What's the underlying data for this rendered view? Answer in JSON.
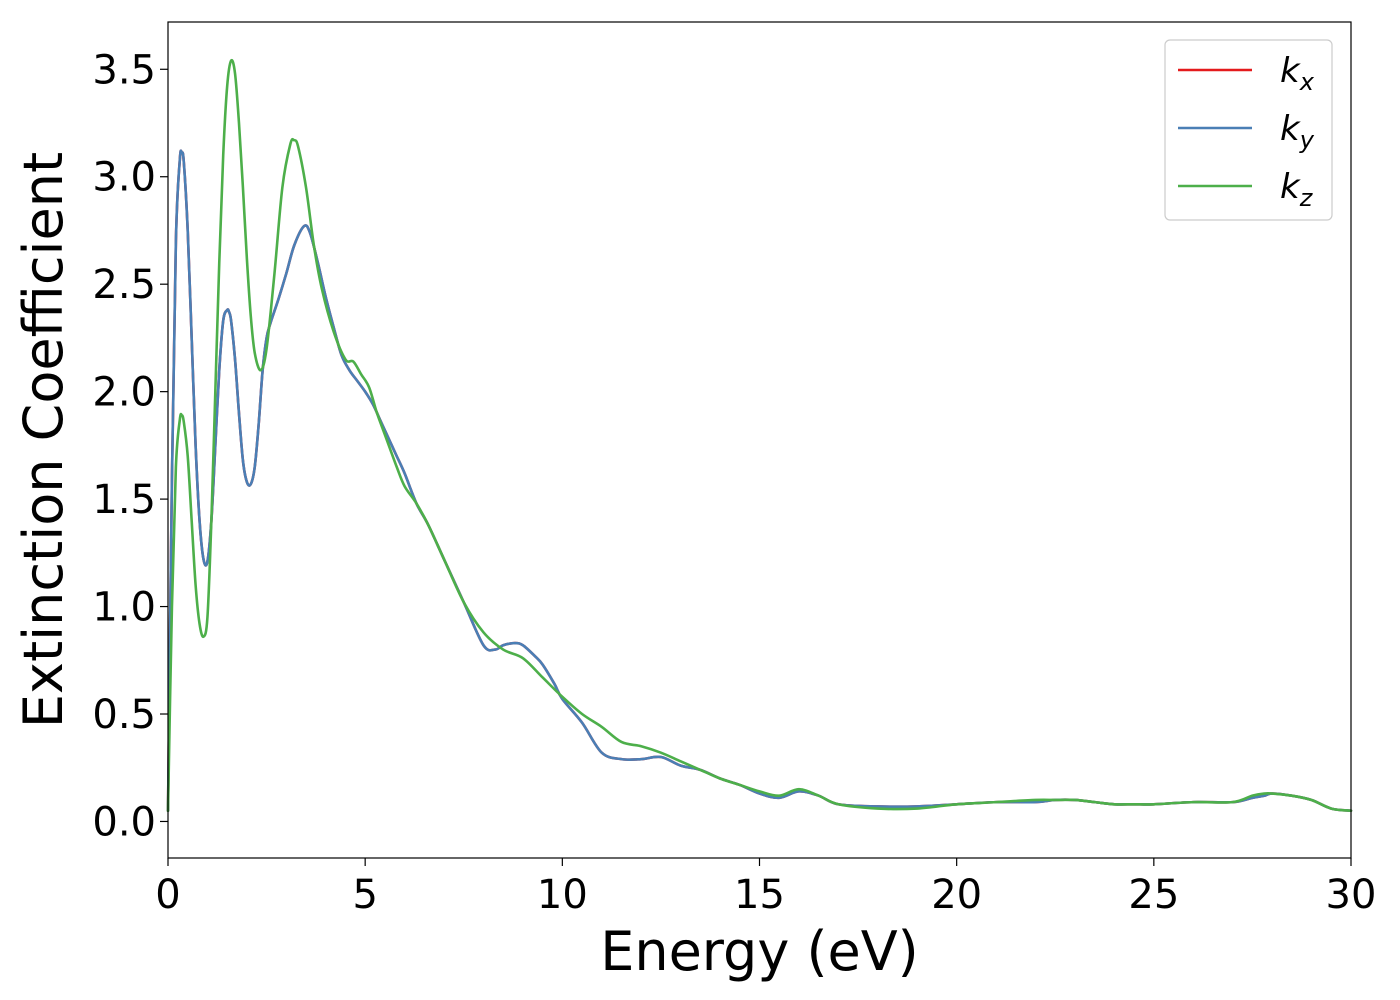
{
  "chart_data": {
    "type": "line",
    "title": "",
    "xlabel": "Energy (eV)",
    "ylabel": "Extinction Coefficient",
    "xlim": [
      0,
      30
    ],
    "ylim": [
      -0.17,
      3.72
    ],
    "xticks": [
      0,
      5,
      10,
      15,
      20,
      25,
      30
    ],
    "xtick_labels": [
      "0",
      "5",
      "10",
      "15",
      "20",
      "25",
      "30"
    ],
    "yticks": [
      0.0,
      0.5,
      1.0,
      1.5,
      2.0,
      2.5,
      3.0,
      3.5
    ],
    "ytick_labels": [
      "0.0",
      "0.5",
      "1.0",
      "1.5",
      "2.0",
      "2.5",
      "3.0",
      "3.5"
    ],
    "grid": false,
    "legend": {
      "position": "top-right"
    },
    "series": [
      {
        "name": "k",
        "subscript": "x",
        "color": "#e41a1c",
        "x": [
          0,
          0.1,
          0.2,
          0.3,
          0.35,
          0.4,
          0.5,
          0.6,
          0.7,
          0.8,
          0.9,
          1.0,
          1.1,
          1.2,
          1.3,
          1.4,
          1.5,
          1.55,
          1.6,
          1.7,
          1.8,
          1.9,
          2.0,
          2.1,
          2.2,
          2.3,
          2.4,
          2.5,
          2.6,
          2.8,
          3.0,
          3.2,
          3.45,
          3.6,
          3.8,
          4.0,
          4.2,
          4.4,
          4.6,
          4.8,
          5.0,
          5.2,
          5.4,
          5.6,
          5.8,
          6.0,
          6.3,
          6.6,
          7.0,
          7.5,
          8.0,
          8.3,
          8.5,
          8.8,
          9.0,
          9.3,
          9.5,
          9.8,
          10.0,
          10.5,
          11.0,
          11.5,
          12.0,
          12.5,
          13.0,
          13.5,
          14.0,
          14.5,
          15.0,
          15.5,
          16.0,
          16.5,
          17.0,
          18.0,
          19.0,
          20.0,
          21.0,
          22.0,
          22.5,
          23.0,
          23.5,
          24.0,
          24.5,
          25.0,
          26.0,
          27.0,
          27.5,
          27.8,
          28.0,
          28.5,
          29.0,
          29.5,
          30.0
        ],
        "y": [
          0.05,
          1.6,
          2.7,
          3.08,
          3.11,
          3.07,
          2.75,
          2.25,
          1.75,
          1.4,
          1.22,
          1.21,
          1.4,
          1.75,
          2.1,
          2.33,
          2.38,
          2.37,
          2.33,
          2.15,
          1.9,
          1.68,
          1.58,
          1.57,
          1.65,
          1.85,
          2.1,
          2.25,
          2.32,
          2.43,
          2.55,
          2.68,
          2.77,
          2.74,
          2.6,
          2.44,
          2.3,
          2.17,
          2.1,
          2.05,
          2.0,
          1.94,
          1.86,
          1.78,
          1.7,
          1.62,
          1.48,
          1.38,
          1.22,
          1.02,
          0.82,
          0.8,
          0.82,
          0.83,
          0.82,
          0.77,
          0.73,
          0.64,
          0.57,
          0.46,
          0.32,
          0.29,
          0.29,
          0.3,
          0.26,
          0.24,
          0.2,
          0.17,
          0.13,
          0.11,
          0.14,
          0.12,
          0.08,
          0.07,
          0.07,
          0.08,
          0.09,
          0.09,
          0.1,
          0.1,
          0.09,
          0.08,
          0.08,
          0.08,
          0.09,
          0.09,
          0.11,
          0.12,
          0.13,
          0.12,
          0.1,
          0.06,
          0.05
        ]
      },
      {
        "name": "k",
        "subscript": "y",
        "color": "#4a7fb5",
        "x": [
          0,
          0.1,
          0.2,
          0.3,
          0.35,
          0.4,
          0.5,
          0.6,
          0.7,
          0.8,
          0.9,
          1.0,
          1.1,
          1.2,
          1.3,
          1.4,
          1.5,
          1.55,
          1.6,
          1.7,
          1.8,
          1.9,
          2.0,
          2.1,
          2.2,
          2.3,
          2.4,
          2.5,
          2.6,
          2.8,
          3.0,
          3.2,
          3.45,
          3.6,
          3.8,
          4.0,
          4.2,
          4.4,
          4.6,
          4.8,
          5.0,
          5.2,
          5.4,
          5.6,
          5.8,
          6.0,
          6.3,
          6.6,
          7.0,
          7.5,
          8.0,
          8.3,
          8.5,
          8.8,
          9.0,
          9.3,
          9.5,
          9.8,
          10.0,
          10.5,
          11.0,
          11.5,
          12.0,
          12.5,
          13.0,
          13.5,
          14.0,
          14.5,
          15.0,
          15.5,
          16.0,
          16.5,
          17.0,
          18.0,
          19.0,
          20.0,
          21.0,
          22.0,
          22.5,
          23.0,
          23.5,
          24.0,
          24.5,
          25.0,
          26.0,
          27.0,
          27.5,
          27.8,
          28.0,
          28.5,
          29.0,
          29.5,
          30.0
        ],
        "y": [
          0.05,
          1.6,
          2.7,
          3.08,
          3.11,
          3.07,
          2.75,
          2.25,
          1.75,
          1.4,
          1.22,
          1.21,
          1.4,
          1.75,
          2.1,
          2.33,
          2.38,
          2.37,
          2.33,
          2.15,
          1.9,
          1.68,
          1.58,
          1.57,
          1.65,
          1.85,
          2.1,
          2.25,
          2.32,
          2.43,
          2.55,
          2.68,
          2.77,
          2.74,
          2.6,
          2.44,
          2.3,
          2.17,
          2.1,
          2.05,
          2.0,
          1.94,
          1.86,
          1.78,
          1.7,
          1.62,
          1.48,
          1.38,
          1.22,
          1.02,
          0.82,
          0.8,
          0.82,
          0.83,
          0.82,
          0.77,
          0.73,
          0.64,
          0.57,
          0.46,
          0.32,
          0.29,
          0.29,
          0.3,
          0.26,
          0.24,
          0.2,
          0.17,
          0.13,
          0.11,
          0.14,
          0.12,
          0.08,
          0.07,
          0.07,
          0.08,
          0.09,
          0.09,
          0.1,
          0.1,
          0.09,
          0.08,
          0.08,
          0.08,
          0.09,
          0.09,
          0.11,
          0.12,
          0.13,
          0.12,
          0.1,
          0.06,
          0.05
        ]
      },
      {
        "name": "k",
        "subscript": "z",
        "color": "#4daf4a",
        "x": [
          0,
          0.1,
          0.2,
          0.3,
          0.35,
          0.4,
          0.5,
          0.6,
          0.7,
          0.8,
          0.9,
          1.0,
          1.1,
          1.2,
          1.3,
          1.4,
          1.5,
          1.6,
          1.7,
          1.8,
          1.9,
          2.0,
          2.1,
          2.2,
          2.35,
          2.5,
          2.7,
          2.9,
          3.1,
          3.2,
          3.3,
          3.5,
          3.7,
          3.9,
          4.2,
          4.5,
          4.7,
          4.9,
          5.1,
          5.3,
          5.5,
          5.8,
          6.0,
          6.3,
          6.6,
          7.0,
          7.5,
          8.0,
          8.5,
          9.0,
          9.5,
          10.0,
          10.5,
          11.0,
          11.5,
          12.0,
          12.5,
          13.0,
          13.5,
          14.0,
          14.5,
          15.0,
          15.5,
          16.0,
          16.5,
          17.0,
          18.0,
          19.0,
          20.0,
          21.0,
          22.0,
          22.5,
          23.0,
          23.5,
          24.0,
          24.5,
          25.0,
          26.0,
          27.0,
          27.5,
          27.8,
          28.0,
          28.5,
          29.0,
          29.5,
          30.0
        ],
        "y": [
          0.05,
          1.0,
          1.65,
          1.87,
          1.89,
          1.86,
          1.7,
          1.4,
          1.1,
          0.92,
          0.86,
          0.95,
          1.4,
          2.0,
          2.6,
          3.1,
          3.42,
          3.54,
          3.48,
          3.25,
          2.95,
          2.62,
          2.35,
          2.18,
          2.1,
          2.2,
          2.55,
          2.95,
          3.15,
          3.17,
          3.14,
          2.95,
          2.68,
          2.48,
          2.28,
          2.15,
          2.14,
          2.08,
          2.02,
          1.9,
          1.8,
          1.65,
          1.56,
          1.48,
          1.38,
          1.22,
          1.02,
          0.88,
          0.8,
          0.76,
          0.67,
          0.58,
          0.5,
          0.44,
          0.37,
          0.35,
          0.32,
          0.28,
          0.24,
          0.2,
          0.17,
          0.14,
          0.12,
          0.15,
          0.12,
          0.08,
          0.06,
          0.06,
          0.08,
          0.09,
          0.1,
          0.1,
          0.1,
          0.09,
          0.08,
          0.08,
          0.08,
          0.09,
          0.09,
          0.12,
          0.13,
          0.13,
          0.12,
          0.1,
          0.06,
          0.05
        ]
      }
    ]
  }
}
